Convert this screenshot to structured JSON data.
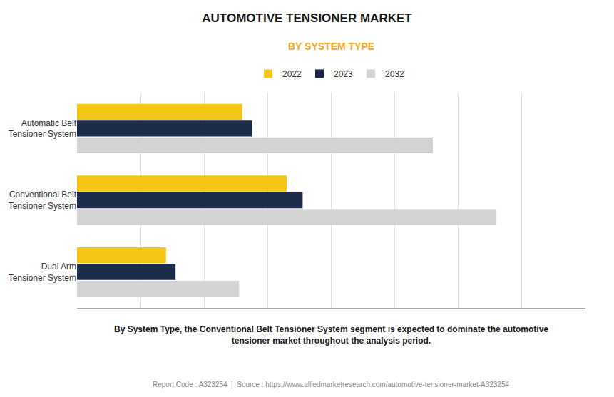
{
  "chart_data": {
    "type": "bar",
    "orientation": "horizontal",
    "title": "AUTOMOTIVE TENSIONER MARKET",
    "subtitle": "BY SYSTEM TYPE",
    "categories": [
      "Dual Arm\nTensioner System",
      "Conventional Belt\nTensioner System",
      "Automatic Belt\nTensioner System"
    ],
    "series": [
      {
        "name": "2022",
        "color": "#F5C518",
        "values": [
          1.4,
          3.3,
          2.6
        ]
      },
      {
        "name": "2023",
        "color": "#1C2B4A",
        "values": [
          1.55,
          3.55,
          2.75
        ]
      },
      {
        "name": "2032",
        "color": "#D3D3D3",
        "values": [
          2.55,
          6.6,
          5.6
        ]
      }
    ],
    "xlim": [
      0,
      8
    ],
    "xticks": [
      0,
      1,
      2,
      3,
      4,
      5,
      6,
      7,
      8
    ],
    "grid": true,
    "tick_labels": "y",
    "legend": "top",
    "annotations": [
      "By System Type, the Conventional Belt Tensioner System segment is expected to dominate the automotive\ntensioner market throughout the analysis period.",
      "Report Code : A323254  |  Source : https://www.alliedmarketresearch.com/automotive-tensioner-market-A323254"
    ]
  }
}
